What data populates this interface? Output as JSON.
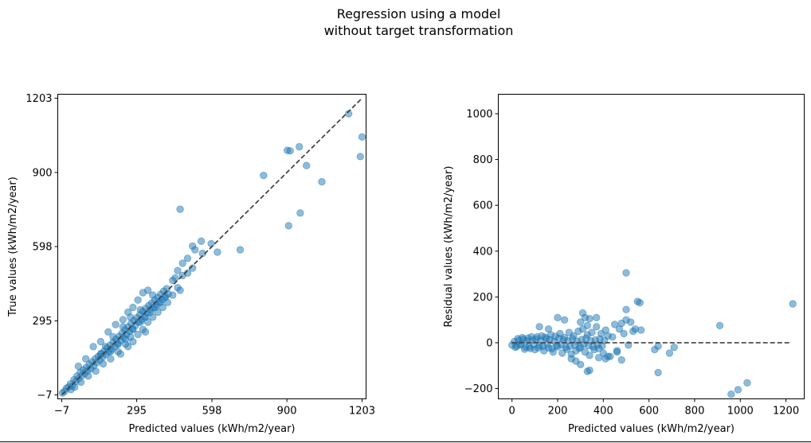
{
  "figure": {
    "title_line1": "Regression using a model",
    "title_line2": "without target transformation"
  },
  "chart_data": [
    {
      "type": "scatter",
      "name": "predicted-vs-true",
      "xlabel": "Predicted values (kWh/m2/year)",
      "ylabel": "True values (kWh/m2/year)",
      "xlim": [
        -23,
        1219
      ],
      "ylim": [
        -23,
        1219
      ],
      "xticks": [
        -7,
        295,
        598,
        900,
        1203
      ],
      "xtick_labels": [
        "−7",
        "295",
        "598",
        "900",
        "1203"
      ],
      "yticks": [
        -7,
        295,
        598,
        900,
        1203
      ],
      "ytick_labels": [
        "−7",
        "295",
        "598",
        "900",
        "1203"
      ],
      "grid": false,
      "point_color": "#1f77b4",
      "point_alpha": 0.5,
      "reference_line": {
        "style": "dashed",
        "color": "#404040",
        "from": [
          -7,
          -7
        ],
        "to": [
          1203,
          1203
        ]
      },
      "points": [
        [
          -4,
          1
        ],
        [
          5,
          8
        ],
        [
          12,
          20
        ],
        [
          20,
          25
        ],
        [
          28,
          38
        ],
        [
          35,
          30
        ],
        [
          42,
          55
        ],
        [
          50,
          48
        ],
        [
          55,
          70
        ],
        [
          62,
          60
        ],
        [
          68,
          85
        ],
        [
          75,
          72
        ],
        [
          80,
          95
        ],
        [
          86,
          80
        ],
        [
          92,
          105
        ],
        [
          98,
          92
        ],
        [
          104,
          118
        ],
        [
          110,
          100
        ],
        [
          116,
          128
        ],
        [
          122,
          112
        ],
        [
          128,
          140
        ],
        [
          134,
          125
        ],
        [
          140,
          150
        ],
        [
          146,
          135
        ],
        [
          152,
          162
        ],
        [
          158,
          148
        ],
        [
          164,
          172
        ],
        [
          170,
          158
        ],
        [
          176,
          185
        ],
        [
          182,
          168
        ],
        [
          188,
          196
        ],
        [
          194,
          180
        ],
        [
          200,
          208
        ],
        [
          206,
          190
        ],
        [
          212,
          220
        ],
        [
          218,
          202
        ],
        [
          224,
          232
        ],
        [
          230,
          215
        ],
        [
          236,
          245
        ],
        [
          242,
          228
        ],
        [
          248,
          258
        ],
        [
          254,
          240
        ],
        [
          260,
          270
        ],
        [
          266,
          252
        ],
        [
          272,
          284
        ],
        [
          278,
          262
        ],
        [
          284,
          296
        ],
        [
          290,
          276
        ],
        [
          296,
          308
        ],
        [
          302,
          290
        ],
        [
          308,
          320
        ],
        [
          314,
          300
        ],
        [
          320,
          334
        ],
        [
          326,
          312
        ],
        [
          332,
          346
        ],
        [
          338,
          328
        ],
        [
          344,
          358
        ],
        [
          350,
          340
        ],
        [
          356,
          368
        ],
        [
          362,
          350
        ],
        [
          368,
          380
        ],
        [
          374,
          360
        ],
        [
          380,
          390
        ],
        [
          386,
          372
        ],
        [
          392,
          404
        ],
        [
          398,
          382
        ],
        [
          404,
          416
        ],
        [
          410,
          396
        ],
        [
          416,
          426
        ],
        [
          422,
          404
        ],
        [
          60,
          110
        ],
        [
          90,
          140
        ],
        [
          120,
          190
        ],
        [
          150,
          210
        ],
        [
          180,
          250
        ],
        [
          210,
          280
        ],
        [
          240,
          300
        ],
        [
          260,
          330
        ],
        [
          280,
          350
        ],
        [
          300,
          380
        ],
        [
          320,
          410
        ],
        [
          340,
          420
        ],
        [
          360,
          400
        ],
        [
          130,
          90
        ],
        [
          160,
          120
        ],
        [
          190,
          140
        ],
        [
          220,
          170
        ],
        [
          250,
          200
        ],
        [
          270,
          230
        ],
        [
          230,
          160
        ],
        [
          300,
          240
        ],
        [
          320,
          260
        ],
        [
          340,
          290
        ],
        [
          360,
          310
        ],
        [
          380,
          330
        ],
        [
          400,
          350
        ],
        [
          420,
          370
        ],
        [
          440,
          400
        ],
        [
          460,
          430
        ],
        [
          470,
          420
        ],
        [
          450,
          470
        ],
        [
          480,
          480
        ],
        [
          500,
          490
        ],
        [
          520,
          510
        ],
        [
          440,
          460
        ],
        [
          460,
          500
        ],
        [
          480,
          530
        ],
        [
          500,
          550
        ],
        [
          530,
          585
        ],
        [
          520,
          600
        ],
        [
          555,
          620
        ],
        [
          560,
          570
        ],
        [
          595,
          610
        ],
        [
          620,
          575
        ],
        [
          470,
          750
        ],
        [
          712,
          585
        ],
        [
          806,
          888
        ],
        [
          902,
          990
        ],
        [
          913,
          988
        ],
        [
          907,
          683
        ],
        [
          950,
          1005
        ],
        [
          954,
          735
        ],
        [
          979,
          928
        ],
        [
          1041,
          862
        ],
        [
          1149,
          1140
        ],
        [
          1196,
          965
        ],
        [
          1203,
          1045
        ],
        [
          280,
          210
        ],
        [
          260,
          190
        ],
        [
          330,
          250
        ],
        [
          100,
          70
        ],
        [
          70,
          45
        ],
        [
          45,
          25
        ],
        [
          30,
          15
        ],
        [
          150,
          160
        ],
        [
          170,
          190
        ],
        [
          200,
          230
        ],
        [
          240,
          270
        ],
        [
          270,
          310
        ],
        [
          310,
          340
        ],
        [
          190,
          170
        ],
        [
          220,
          200
        ],
        [
          250,
          220
        ],
        [
          280,
          260
        ],
        [
          310,
          290
        ],
        [
          330,
          310
        ],
        [
          350,
          330
        ],
        [
          370,
          350
        ],
        [
          390,
          370
        ],
        [
          410,
          390
        ]
      ]
    },
    {
      "type": "scatter",
      "name": "predicted-vs-residual",
      "xlabel": "Predicted values (kWh/m2/year)",
      "ylabel": "Residual values (kWh/m2/year)",
      "xlim": [
        -60,
        1280
      ],
      "ylim": [
        -245,
        1085
      ],
      "xticks": [
        0,
        200,
        400,
        600,
        800,
        1000,
        1200
      ],
      "xtick_labels": [
        "0",
        "200",
        "400",
        "600",
        "800",
        "1000",
        "1200"
      ],
      "yticks": [
        -200,
        0,
        200,
        400,
        600,
        800,
        1000
      ],
      "ytick_labels": [
        "−200",
        "0",
        "200",
        "400",
        "600",
        "800",
        "1000"
      ],
      "grid": false,
      "point_color": "#1f77b4",
      "point_alpha": 0.5,
      "reference_line": {
        "style": "dashed",
        "color": "#404040",
        "from": [
          0,
          0
        ],
        "to": [
          1220,
          0
        ]
      },
      "points": [
        [
          0,
          -10
        ],
        [
          10,
          5
        ],
        [
          20,
          -15
        ],
        [
          30,
          10
        ],
        [
          40,
          -5
        ],
        [
          50,
          15
        ],
        [
          60,
          -20
        ],
        [
          70,
          20
        ],
        [
          80,
          -25
        ],
        [
          90,
          12
        ],
        [
          100,
          -30
        ],
        [
          110,
          25
        ],
        [
          120,
          -12
        ],
        [
          130,
          30
        ],
        [
          140,
          -35
        ],
        [
          150,
          18
        ],
        [
          160,
          -22
        ],
        [
          170,
          35
        ],
        [
          180,
          -40
        ],
        [
          190,
          28
        ],
        [
          200,
          -18
        ],
        [
          210,
          40
        ],
        [
          220,
          -45
        ],
        [
          230,
          22
        ],
        [
          240,
          -28
        ],
        [
          250,
          45
        ],
        [
          260,
          -50
        ],
        [
          270,
          30
        ],
        [
          280,
          -35
        ],
        [
          290,
          50
        ],
        [
          300,
          -20
        ],
        [
          310,
          60
        ],
        [
          320,
          -40
        ],
        [
          330,
          35
        ],
        [
          340,
          -55
        ],
        [
          350,
          45
        ],
        [
          360,
          -30
        ],
        [
          370,
          70
        ],
        [
          380,
          -25
        ],
        [
          390,
          40
        ],
        [
          400,
          -45
        ],
        [
          410,
          55
        ],
        [
          420,
          30
        ],
        [
          430,
          -60
        ],
        [
          440,
          25
        ],
        [
          450,
          80
        ],
        [
          460,
          -35
        ],
        [
          470,
          60
        ],
        [
          480,
          85
        ],
        [
          490,
          40
        ],
        [
          500,
          100
        ],
        [
          510,
          -10
        ],
        [
          520,
          90
        ],
        [
          530,
          50
        ],
        [
          550,
          180
        ],
        [
          560,
          175
        ],
        [
          540,
          60
        ],
        [
          565,
          55
        ],
        [
          500,
          305
        ],
        [
          500,
          145
        ],
        [
          310,
          130
        ],
        [
          320,
          110
        ],
        [
          300,
          90
        ],
        [
          330,
          75
        ],
        [
          340,
          105
        ],
        [
          370,
          110
        ],
        [
          230,
          100
        ],
        [
          200,
          110
        ],
        [
          120,
          70
        ],
        [
          160,
          60
        ],
        [
          330,
          -125
        ],
        [
          340,
          -120
        ],
        [
          300,
          -95
        ],
        [
          280,
          -80
        ],
        [
          260,
          -70
        ],
        [
          380,
          -65
        ],
        [
          420,
          -60
        ],
        [
          460,
          -40
        ],
        [
          410,
          -70
        ],
        [
          480,
          -75
        ],
        [
          625,
          -30
        ],
        [
          640,
          -130
        ],
        [
          640,
          -15
        ],
        [
          690,
          -45
        ],
        [
          710,
          -20
        ],
        [
          910,
          75
        ],
        [
          960,
          -225
        ],
        [
          990,
          -205
        ],
        [
          1030,
          -175
        ],
        [
          1230,
          170
        ],
        [
          15,
          -20
        ],
        [
          25,
          18
        ],
        [
          35,
          -10
        ],
        [
          45,
          22
        ],
        [
          55,
          -28
        ],
        [
          65,
          8
        ],
        [
          75,
          -18
        ],
        [
          85,
          26
        ],
        [
          95,
          -8
        ],
        [
          105,
          16
        ],
        [
          115,
          -22
        ],
        [
          125,
          10
        ],
        [
          135,
          -16
        ],
        [
          145,
          24
        ],
        [
          155,
          -6
        ],
        [
          165,
          14
        ],
        [
          175,
          -26
        ],
        [
          185,
          6
        ],
        [
          195,
          -12
        ],
        [
          205,
          20
        ],
        [
          215,
          -8
        ],
        [
          225,
          12
        ],
        [
          235,
          -20
        ],
        [
          245,
          8
        ],
        [
          255,
          -14
        ],
        [
          265,
          18
        ],
        [
          275,
          -10
        ],
        [
          285,
          6
        ],
        [
          295,
          -24
        ],
        [
          305,
          14
        ],
        [
          315,
          -6
        ],
        [
          325,
          20
        ],
        [
          335,
          -12
        ],
        [
          345,
          8
        ],
        [
          355,
          -18
        ],
        [
          365,
          12
        ],
        [
          375,
          -8
        ],
        [
          385,
          16
        ],
        [
          395,
          -14
        ],
        [
          405,
          10
        ]
      ]
    }
  ]
}
